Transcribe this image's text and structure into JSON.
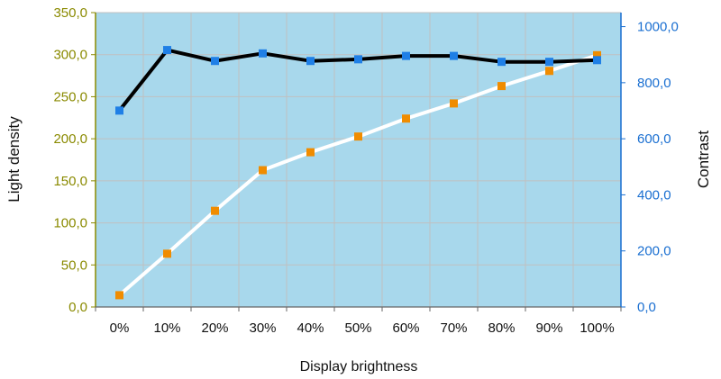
{
  "chart_data": {
    "type": "line",
    "categories": [
      "0%",
      "10%",
      "20%",
      "30%",
      "40%",
      "50%",
      "60%",
      "70%",
      "80%",
      "90%",
      "100%"
    ],
    "series": [
      {
        "name": "",
        "axis": "left",
        "values": [
          233.5,
          305.5,
          292.5,
          301.5,
          292.5,
          294.5,
          298.5,
          298.5,
          291.5,
          291.5,
          293.5
        ],
        "line_color": "#000000",
        "marker_color": "#1f7fe6"
      },
      {
        "name": "",
        "axis": "right",
        "values": [
          42,
          190,
          343,
          488,
          552,
          608,
          672,
          726,
          788,
          842,
          898
        ],
        "line_color": "#ffffff",
        "marker_color": "#f08c00"
      }
    ],
    "xlabel": "Display brightness",
    "ylabel_left": "Light density",
    "ylabel_right": "Contrast",
    "ylim_left": [
      0,
      350
    ],
    "ylim_right": [
      0,
      1050
    ],
    "yticks_left": [
      "0,0",
      "50,0",
      "100,0",
      "150,0",
      "200,0",
      "250,0",
      "300,0",
      "350,0"
    ],
    "yticks_right": [
      "0,0",
      "200,0",
      "400,0",
      "600,0",
      "800,0",
      "1000,0"
    ],
    "grid": true,
    "plot_background": "#a8d8ec",
    "grid_color": "#c0c0c0",
    "left_axis_color": "#8a8a00",
    "right_axis_color": "#1a6fd1"
  }
}
